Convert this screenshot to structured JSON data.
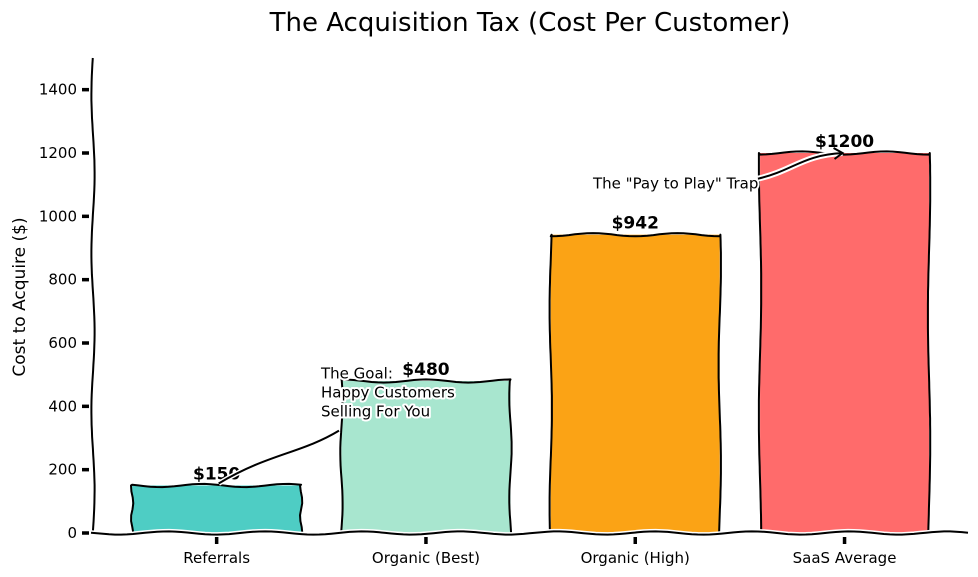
{
  "chart_data": {
    "type": "bar",
    "style": "xkcd",
    "title": "The Acquisition Tax (Cost Per Customer)",
    "xlabel": "",
    "ylabel": "Cost to Acquire ($)",
    "ylim": [
      0,
      1500
    ],
    "yticks": [
      0,
      200,
      400,
      600,
      800,
      1000,
      1200,
      1400
    ],
    "ytick_labels": [
      "0",
      "200",
      "400",
      "600",
      "800",
      "1000",
      "1200",
      "1400"
    ],
    "categories": [
      "Referrals",
      "Organic (Best)",
      "Organic (High)",
      "SaaS Average"
    ],
    "values": [
      150,
      480,
      942,
      1200
    ],
    "data_labels": [
      "$150",
      "$480",
      "$942",
      "$1200"
    ],
    "colors": [
      "#4ECDC4",
      "#A8E6CF",
      "#FBA315",
      "#FF6B6B"
    ],
    "grid": false,
    "legend": "none",
    "annotations": [
      {
        "lines": [
          "The Goal:",
          "Happy Customers",
          "Selling For You"
        ],
        "target_category": "Referrals",
        "target_value": 150,
        "text_value": 500
      },
      {
        "lines": [
          "The \"Pay to Play\" Trap"
        ],
        "target_category": "SaaS Average",
        "target_value": 1200,
        "text_value": 1100
      }
    ]
  }
}
